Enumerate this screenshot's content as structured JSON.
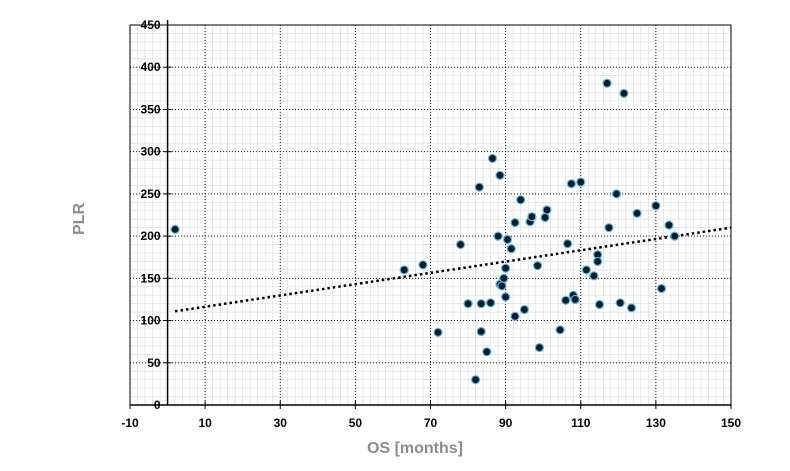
{
  "chart_data": {
    "type": "scatter",
    "title": "",
    "xlabel": "OS [months]",
    "ylabel": "PLR",
    "xlim": [
      -10,
      150
    ],
    "ylim": [
      0,
      450
    ],
    "xticks": [
      "-10",
      "10",
      "30",
      "50",
      "70",
      "90",
      "110",
      "130",
      "150"
    ],
    "yticks": [
      "0",
      "50",
      "100",
      "150",
      "200",
      "250",
      "300",
      "350",
      "400",
      "450"
    ],
    "grid": true,
    "legend": "none",
    "colors": {
      "point_fill": "#0b1a2e",
      "point_edge": "#5bb8d8",
      "trendline": "#000000",
      "grid": "#000000",
      "minor_grid": "#d9d9d9",
      "axis_title": "#8c8c8c"
    },
    "series": [
      {
        "points": [
          [
            2,
            208
          ],
          [
            63,
            160
          ],
          [
            68,
            166
          ],
          [
            72,
            86
          ],
          [
            78,
            190
          ],
          [
            80,
            120
          ],
          [
            82,
            30
          ],
          [
            83,
            258
          ],
          [
            83.5,
            120
          ],
          [
            83.5,
            87
          ],
          [
            85,
            63
          ],
          [
            86,
            121
          ],
          [
            86.5,
            292
          ],
          [
            88,
            200
          ],
          [
            88.5,
            272
          ],
          [
            88.5,
            143
          ],
          [
            89,
            141
          ],
          [
            89.5,
            150
          ],
          [
            90,
            128
          ],
          [
            90,
            162
          ],
          [
            90.5,
            196
          ],
          [
            91.5,
            185
          ],
          [
            92.5,
            216
          ],
          [
            92.5,
            105
          ],
          [
            94,
            243
          ],
          [
            95,
            113
          ],
          [
            96.5,
            217
          ],
          [
            97,
            223
          ],
          [
            98.5,
            165
          ],
          [
            99,
            68
          ],
          [
            100.5,
            222
          ],
          [
            101,
            231
          ],
          [
            104.5,
            89
          ],
          [
            106,
            124
          ],
          [
            106.5,
            191
          ],
          [
            107.5,
            262
          ],
          [
            108,
            130
          ],
          [
            108.5,
            125
          ],
          [
            110,
            264
          ],
          [
            111.5,
            160
          ],
          [
            113.5,
            153
          ],
          [
            114.5,
            178
          ],
          [
            114.5,
            170
          ],
          [
            115,
            119
          ],
          [
            117,
            381
          ],
          [
            117.5,
            210
          ],
          [
            119.5,
            250
          ],
          [
            120.5,
            121
          ],
          [
            121.5,
            369
          ],
          [
            123.5,
            115
          ],
          [
            125,
            227
          ],
          [
            130,
            236
          ],
          [
            131.5,
            138
          ],
          [
            133.5,
            213
          ],
          [
            135,
            200
          ]
        ]
      }
    ],
    "trendline": {
      "style": "dotted",
      "from": [
        2,
        111
      ],
      "to": [
        150,
        210
      ]
    }
  }
}
